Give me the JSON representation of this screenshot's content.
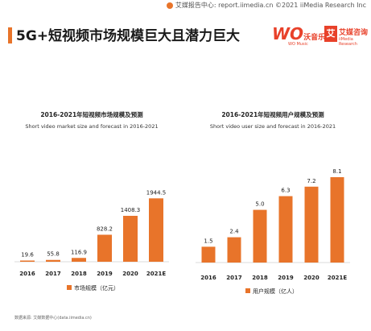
{
  "header": {
    "source_line": "艾媒报告中心: report.iimedia.cn  ©2021  iiMedia Research  Inc",
    "title": "5G+短视频市场规模巨大且潜力巨大"
  },
  "logos": {
    "wo_text": "WO",
    "wo_chinese": "沃音乐",
    "wo_sub": "WO Music",
    "iimedia_mark": "艾",
    "iimedia_chinese": "艾媒咨询",
    "iimedia_english": "iiMedia Research"
  },
  "footnote": "数据来源: 艾媒数据中心(data.iimedia.cn)",
  "colors": {
    "bar": "#e8742a",
    "accent": "#e8412a"
  },
  "chart_data": [
    {
      "type": "bar",
      "title": "2016-2021年短视频市场规模及预测",
      "subtitle": "Short video market size and forecast in 2016-2021",
      "categories": [
        "2016",
        "2017",
        "2018",
        "2019",
        "2020",
        "2021E"
      ],
      "series": [
        {
          "name": "市场规模（亿元）",
          "values": [
            19.6,
            55.8,
            116.9,
            828.2,
            1408.3,
            1944.5
          ]
        }
      ],
      "value_labels": [
        "19.6",
        "55.8",
        "116.9",
        "828.2",
        "1408.3",
        "1944.5"
      ],
      "ylim": [
        0,
        2100
      ],
      "legend": "bottom",
      "grid": false
    },
    {
      "type": "bar",
      "title": "2016-2021年短视频用户规模及预测",
      "subtitle": "Short video user size and forecast in 2016-2021",
      "categories": [
        "2016",
        "2017",
        "2018",
        "2019",
        "2020",
        "2021E"
      ],
      "series": [
        {
          "name": "用户规模（亿人）",
          "values": [
            1.5,
            2.4,
            5.0,
            6.3,
            7.2,
            8.1
          ]
        }
      ],
      "value_labels": [
        "1.5",
        "2.4",
        "5.0",
        "6.3",
        "7.2",
        "8.1"
      ],
      "ylim": [
        0,
        8.1
      ],
      "legend": "bottom",
      "grid": false
    }
  ]
}
